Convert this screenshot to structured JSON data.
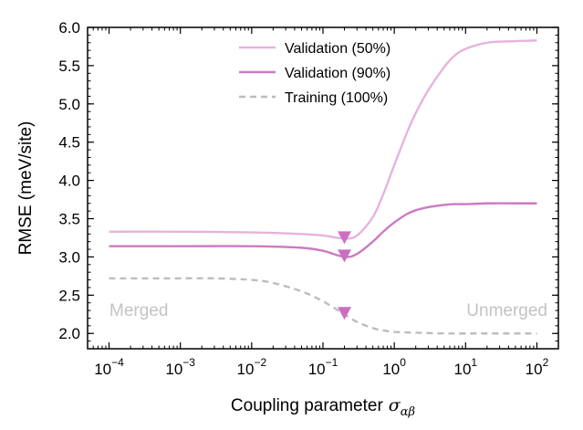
{
  "chart_data": {
    "type": "line",
    "xscale": "log",
    "xlabel": "Coupling parameter",
    "xlabel_symbol": "σ",
    "xlabel_subscript": "αβ",
    "ylabel": "RMSE (meV/site)",
    "xlim": [
      5e-05,
      200
    ],
    "ylim": [
      1.8,
      6.0
    ],
    "y_ticks": [
      2.0,
      2.5,
      3.0,
      3.5,
      4.0,
      4.5,
      5.0,
      5.5,
      6.0
    ],
    "y_tick_labels": [
      "2.0",
      "2.5",
      "3.0",
      "3.5",
      "4.0",
      "4.5",
      "5.0",
      "5.5",
      "6.0"
    ],
    "x_ticks": [
      0.0001,
      0.001,
      0.01,
      0.1,
      1,
      10,
      100
    ],
    "x_tick_labels": [
      {
        "base": "10",
        "exp": "−4"
      },
      {
        "base": "10",
        "exp": "−3"
      },
      {
        "base": "10",
        "exp": "−2"
      },
      {
        "base": "10",
        "exp": "−1"
      },
      {
        "base": "10",
        "exp": "0"
      },
      {
        "base": "10",
        "exp": "1"
      },
      {
        "base": "10",
        "exp": "2"
      }
    ],
    "legend_position": "top-center",
    "series": [
      {
        "name": "Validation (50%)",
        "color": "#e6b3dd",
        "dash": "solid",
        "x": [
          0.0001,
          0.001,
          0.01,
          0.05,
          0.1,
          0.2,
          0.3,
          0.5,
          0.7,
          1,
          1.5,
          2,
          3,
          5,
          7,
          10,
          20,
          50,
          100
        ],
        "y": [
          3.33,
          3.33,
          3.32,
          3.3,
          3.28,
          3.24,
          3.28,
          3.52,
          3.82,
          4.2,
          4.62,
          4.88,
          5.18,
          5.48,
          5.63,
          5.72,
          5.8,
          5.82,
          5.83
        ],
        "marker": {
          "x": 0.2,
          "y": 3.24
        }
      },
      {
        "name": "Validation (90%)",
        "color": "#cc7ac2",
        "dash": "solid",
        "x": [
          0.0001,
          0.001,
          0.01,
          0.05,
          0.1,
          0.2,
          0.3,
          0.5,
          0.7,
          1,
          1.5,
          2,
          3,
          5,
          7,
          10,
          20,
          50,
          100
        ],
        "y": [
          3.14,
          3.14,
          3.14,
          3.12,
          3.08,
          3.0,
          3.04,
          3.2,
          3.33,
          3.45,
          3.56,
          3.61,
          3.65,
          3.68,
          3.69,
          3.69,
          3.7,
          3.7,
          3.7
        ],
        "marker": {
          "x": 0.2,
          "y": 3.0
        }
      },
      {
        "name": "Training (100%)",
        "color": "#bdbdbd",
        "dash": "dashed",
        "x": [
          0.0001,
          0.001,
          0.003,
          0.01,
          0.02,
          0.05,
          0.1,
          0.2,
          0.3,
          0.5,
          0.7,
          1,
          2,
          5,
          10,
          100
        ],
        "y": [
          2.72,
          2.72,
          2.72,
          2.7,
          2.66,
          2.55,
          2.42,
          2.25,
          2.15,
          2.07,
          2.04,
          2.02,
          2.01,
          2.0,
          2.0,
          2.0
        ],
        "marker": {
          "x": 0.2,
          "y": 2.25
        }
      }
    ],
    "marker_color": "#cc6ec0",
    "annotations": [
      {
        "text": "Merged",
        "color": "#c3c3c3",
        "anchor": "bottom-left"
      },
      {
        "text": "Unmerged",
        "color": "#c3c3c3",
        "anchor": "bottom-right"
      }
    ]
  }
}
